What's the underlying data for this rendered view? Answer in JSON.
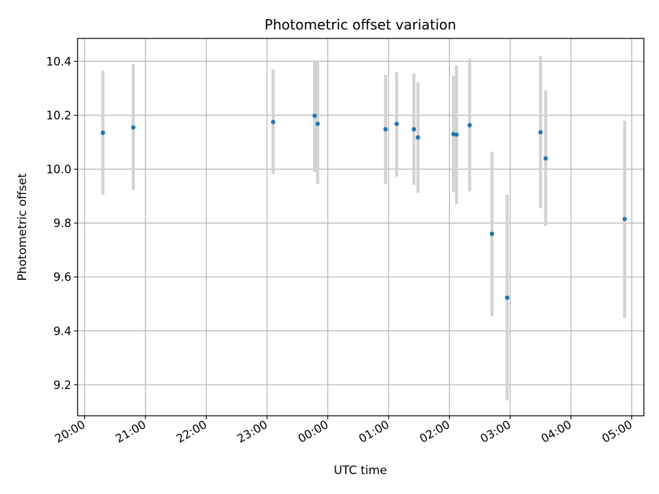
{
  "chart_data": {
    "type": "scatter",
    "title": "Photometric offset variation",
    "xlabel": "UTC time",
    "ylabel": "Photometric offset",
    "grid": true,
    "x_ticks": [
      "20:00",
      "21:00",
      "22:00",
      "23:00",
      "00:00",
      "01:00",
      "02:00",
      "03:00",
      "04:00",
      "05:00"
    ],
    "y_ticks": [
      "9.2",
      "9.4",
      "9.6",
      "9.8",
      "10.0",
      "10.2",
      "10.4"
    ],
    "xlim": [
      "19:53",
      "05:12"
    ],
    "ylim": [
      9.085,
      10.485
    ],
    "colors": {
      "points": "#1f77b4",
      "errorbars": "#d3d3d3",
      "grid": "#b0b0b0"
    },
    "series": [
      {
        "points": [
          {
            "x": "20:18",
            "y": 10.135,
            "yerr_low": 9.905,
            "yerr_high": 10.365
          },
          {
            "x": "20:48",
            "y": 10.155,
            "yerr_low": 9.922,
            "yerr_high": 10.39
          },
          {
            "x": "23:06",
            "y": 10.175,
            "yerr_low": 9.982,
            "yerr_high": 10.37
          },
          {
            "x": "23:47",
            "y": 10.198,
            "yerr_low": 9.99,
            "yerr_high": 10.405
          },
          {
            "x": "23:50",
            "y": 10.168,
            "yerr_low": 9.945,
            "yerr_high": 10.4
          },
          {
            "x": "00:57",
            "y": 10.148,
            "yerr_low": 9.945,
            "yerr_high": 10.35
          },
          {
            "x": "01:08",
            "y": 10.168,
            "yerr_low": 9.972,
            "yerr_high": 10.36
          },
          {
            "x": "01:25",
            "y": 10.148,
            "yerr_low": 9.942,
            "yerr_high": 10.355
          },
          {
            "x": "01:29",
            "y": 10.118,
            "yerr_low": 9.912,
            "yerr_high": 10.322
          },
          {
            "x": "02:04",
            "y": 10.13,
            "yerr_low": 9.915,
            "yerr_high": 10.345
          },
          {
            "x": "02:07",
            "y": 10.128,
            "yerr_low": 9.87,
            "yerr_high": 10.385
          },
          {
            "x": "02:20",
            "y": 10.163,
            "yerr_low": 9.918,
            "yerr_high": 10.41
          },
          {
            "x": "02:42",
            "y": 9.76,
            "yerr_low": 9.455,
            "yerr_high": 10.065
          },
          {
            "x": "02:57",
            "y": 9.523,
            "yerr_low": 9.142,
            "yerr_high": 9.905
          },
          {
            "x": "03:30",
            "y": 10.137,
            "yerr_low": 9.855,
            "yerr_high": 10.42
          },
          {
            "x": "03:35",
            "y": 10.04,
            "yerr_low": 9.79,
            "yerr_high": 10.292
          },
          {
            "x": "04:53",
            "y": 9.815,
            "yerr_low": 9.448,
            "yerr_high": 10.18
          }
        ]
      }
    ]
  }
}
